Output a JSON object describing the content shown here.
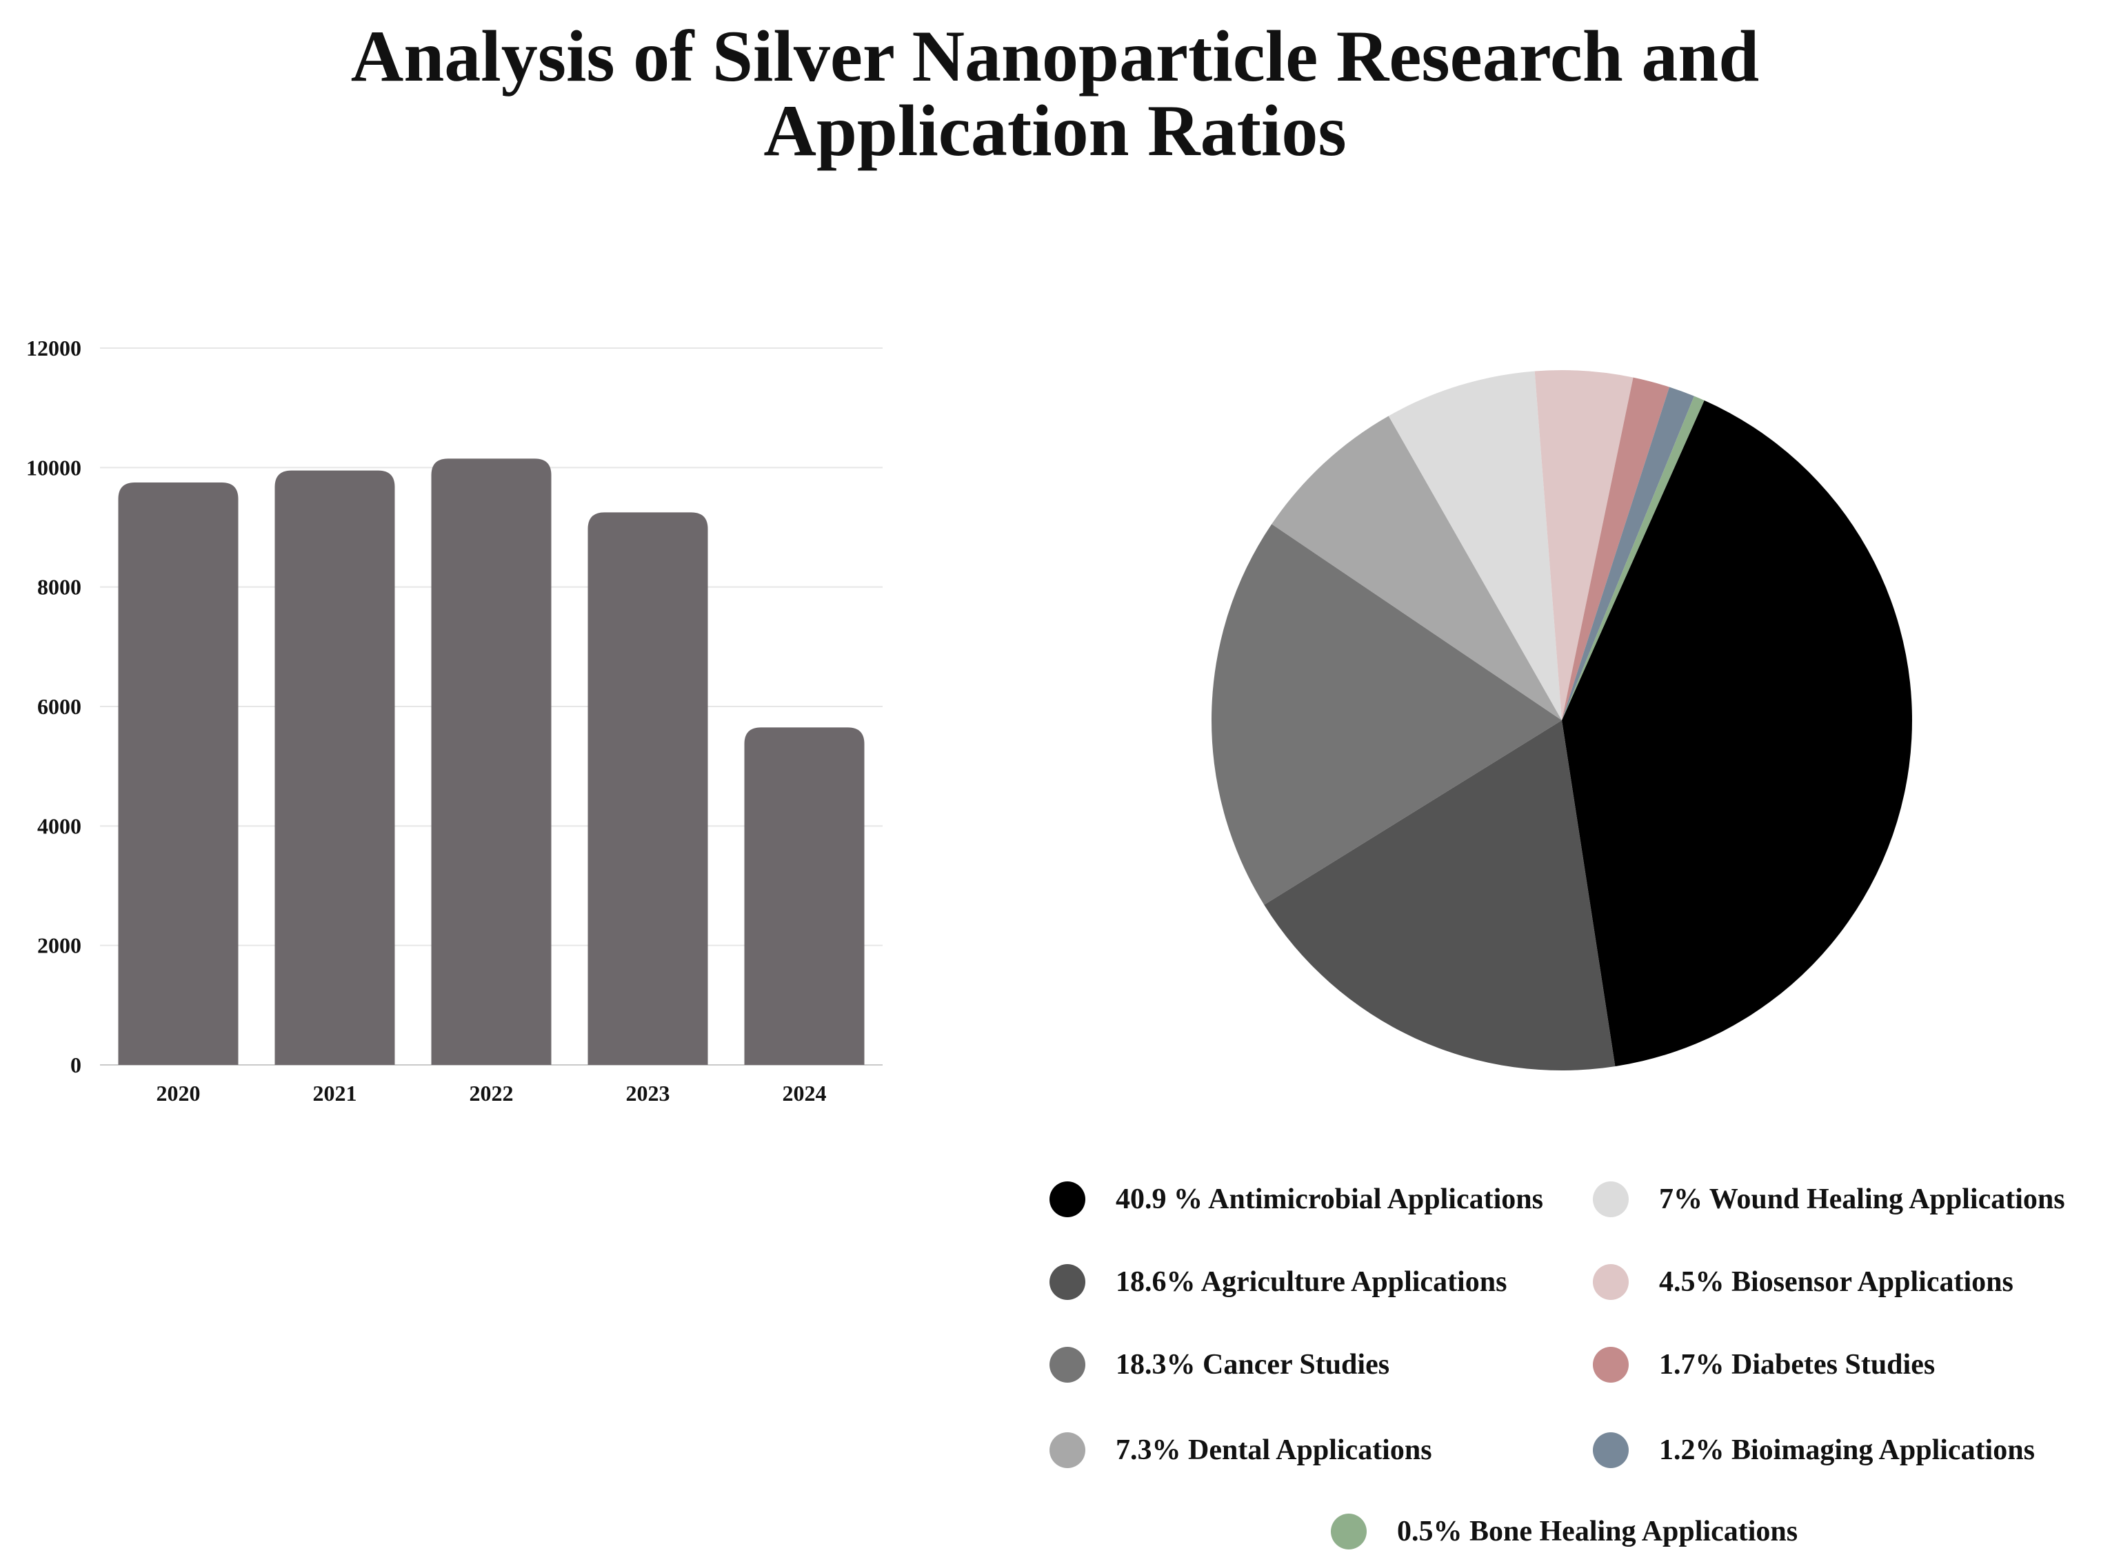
{
  "title": {
    "line1": "Analysis of Silver Nanoparticle Research and",
    "line2": "Application Ratios"
  },
  "chart_data": [
    {
      "type": "bar",
      "categories": [
        "2020",
        "2021",
        "2022",
        "2023",
        "2024"
      ],
      "values": [
        9750,
        9950,
        10150,
        9250,
        5650
      ],
      "ylim": [
        0,
        12000
      ],
      "yticks": [
        0,
        2000,
        4000,
        6000,
        8000,
        10000,
        12000
      ],
      "grid": true,
      "color": "#6d686b"
    },
    {
      "type": "pie",
      "slices": [
        {
          "label": "40.9 % Antimicrobial Applications",
          "value": 40.9,
          "color": "#000000"
        },
        {
          "label": "18.6% Agriculture Applications",
          "value": 18.6,
          "color": "#545454"
        },
        {
          "label": "18.3% Cancer Studies",
          "value": 18.3,
          "color": "#757575"
        },
        {
          "label": "7.3% Dental Applications",
          "value": 7.3,
          "color": "#a8a8a8"
        },
        {
          "label": "7%  Wound Healing Applications",
          "value": 7.0,
          "color": "#dcdcdc"
        },
        {
          "label": "4.5% Biosensor Applications",
          "value": 4.5,
          "color": "#dfc6c6"
        },
        {
          "label": "1.7% Diabetes Studies",
          "value": 1.7,
          "color": "#c48b8b"
        },
        {
          "label": "1.2% Bioimaging Applications",
          "value": 1.2,
          "color": "#778899"
        },
        {
          "label": "0.5% Bone Healing Applications",
          "value": 0.5,
          "color": "#8faf8b"
        }
      ],
      "legend_position": "bottom"
    }
  ]
}
